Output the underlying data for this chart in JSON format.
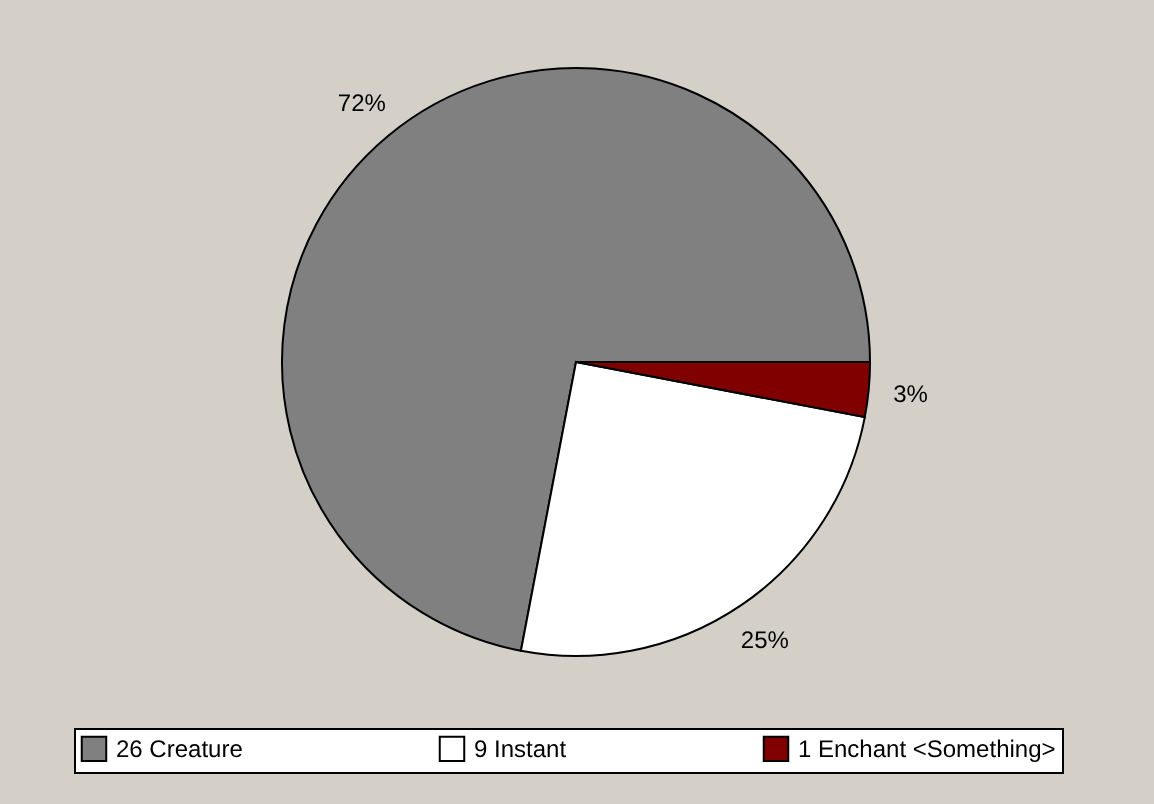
{
  "chart_data": {
    "type": "pie",
    "categories": [
      "26 Creature",
      "9 Instant",
      "1 Enchant <Something>"
    ],
    "values": [
      72,
      25,
      3
    ],
    "colors": [
      "#808080",
      "#ffffff",
      "#800000"
    ],
    "value_labels": [
      "72%",
      "25%",
      "3%"
    ],
    "legend": "bottom"
  }
}
